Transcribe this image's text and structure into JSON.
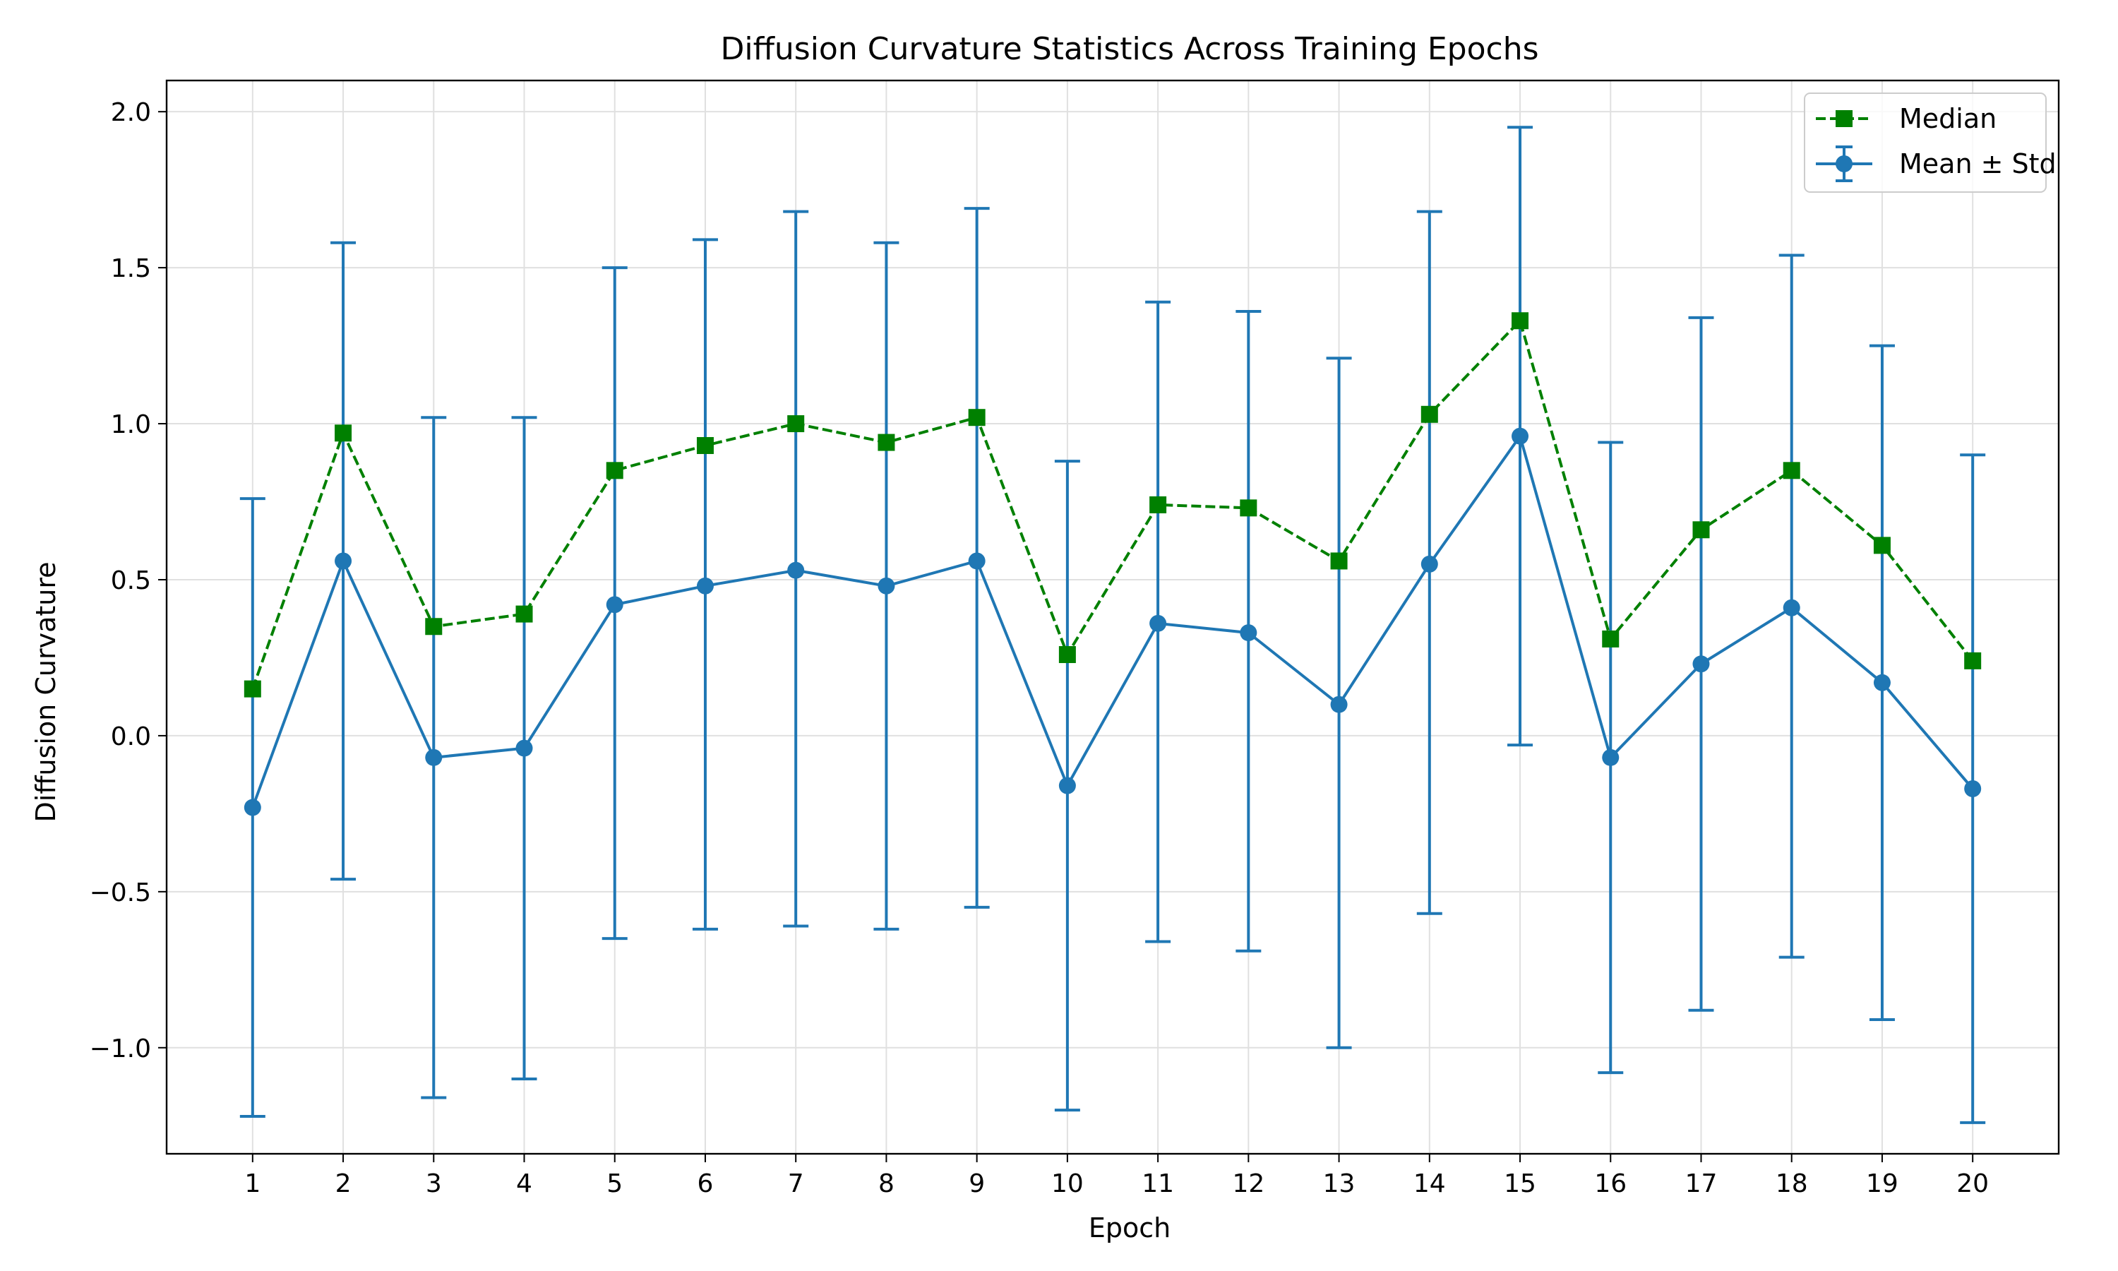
{
  "chart_data": {
    "type": "line",
    "title": "Diffusion Curvature Statistics Across Training Epochs",
    "xlabel": "Epoch",
    "ylabel": "Diffusion Curvature",
    "x": [
      1,
      2,
      3,
      4,
      5,
      6,
      7,
      8,
      9,
      10,
      11,
      12,
      13,
      14,
      15,
      16,
      17,
      18,
      19,
      20
    ],
    "xlim": [
      0.05,
      20.95
    ],
    "ylim": [
      -1.34,
      2.1
    ],
    "yticks": [
      -1.0,
      -0.5,
      0.0,
      0.5,
      1.0,
      1.5,
      2.0
    ],
    "ytick_labels": [
      "−1.0",
      "−0.5",
      "0.0",
      "0.5",
      "1.0",
      "1.5",
      "2.0"
    ],
    "xtick_labels": [
      "1",
      "2",
      "3",
      "4",
      "5",
      "6",
      "7",
      "8",
      "9",
      "10",
      "11",
      "12",
      "13",
      "14",
      "15",
      "16",
      "17",
      "18",
      "19",
      "20"
    ],
    "grid": true,
    "legend_position": "top-right",
    "series": [
      {
        "name": "Median",
        "style": "dashed-square",
        "color": "#008000",
        "values": [
          0.15,
          0.97,
          0.35,
          0.39,
          0.85,
          0.93,
          1.0,
          0.94,
          1.02,
          0.26,
          0.74,
          0.73,
          0.56,
          1.03,
          1.33,
          0.31,
          0.66,
          0.85,
          0.61,
          0.24
        ]
      },
      {
        "name": "Mean ± Std",
        "style": "solid-circle-errorbar",
        "color": "#1f77b4",
        "values": [
          -0.23,
          0.56,
          -0.07,
          -0.04,
          0.42,
          0.48,
          0.53,
          0.48,
          0.56,
          -0.16,
          0.36,
          0.33,
          0.1,
          0.55,
          0.96,
          -0.07,
          0.23,
          0.41,
          0.17,
          -0.17
        ],
        "err_upper": [
          0.76,
          1.58,
          1.02,
          1.02,
          1.5,
          1.59,
          1.68,
          1.58,
          1.69,
          0.88,
          1.39,
          1.36,
          1.21,
          1.68,
          1.95,
          0.94,
          1.34,
          1.54,
          1.25,
          0.9
        ],
        "err_lower": [
          -1.22,
          -0.46,
          -1.16,
          -1.1,
          -0.65,
          -0.62,
          -0.61,
          -0.62,
          -0.55,
          -1.2,
          -0.66,
          -0.69,
          -1.0,
          -0.57,
          -0.03,
          -1.08,
          -0.88,
          -0.71,
          -0.91,
          -1.24
        ]
      }
    ]
  }
}
